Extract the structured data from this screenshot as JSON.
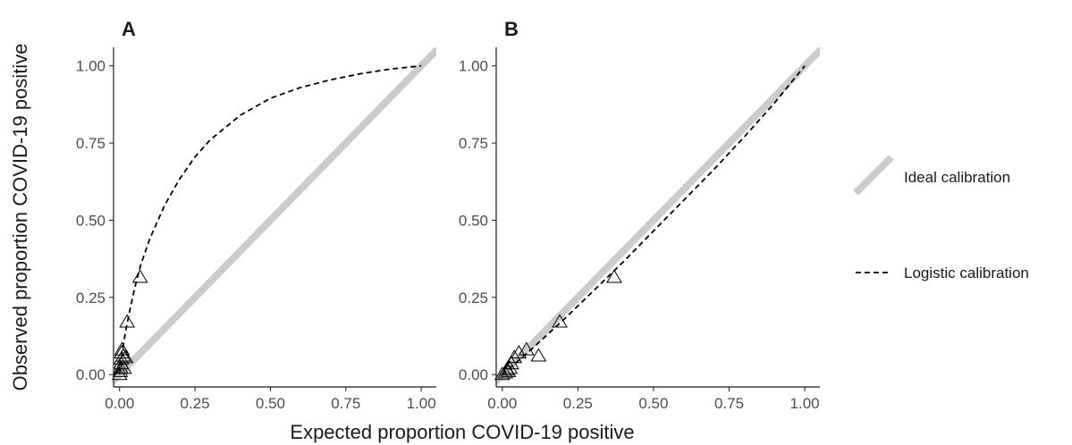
{
  "chart_data": {
    "type": "scatter",
    "xlabel": "Expected proportion COVID-19 positive",
    "ylabel": "Observed proportion COVID-19 positive",
    "xlim": [
      -0.02,
      1.05
    ],
    "ylim": [
      -0.04,
      1.06
    ],
    "x_ticks": [
      "0.00",
      "0.25",
      "0.50",
      "0.75",
      "1.00"
    ],
    "y_ticks": [
      "0.00",
      "0.25",
      "0.50",
      "0.75",
      "1.00"
    ],
    "grid": false,
    "legend": {
      "placement": "right",
      "entries": [
        {
          "label": "Ideal calibration",
          "style": "thick solid line",
          "color": "#cccccc"
        },
        {
          "label": "Logistic calibration",
          "style": "dashed line",
          "color": "#000000"
        }
      ]
    },
    "panels": [
      {
        "tag": "A",
        "points": [
          [
            0.0,
            0.0
          ],
          [
            0.002,
            0.01
          ],
          [
            0.004,
            0.02
          ],
          [
            0.005,
            0.035
          ],
          [
            0.006,
            0.05
          ],
          [
            0.007,
            0.07
          ],
          [
            0.008,
            0.08
          ],
          [
            0.012,
            0.06
          ],
          [
            0.015,
            0.02
          ],
          [
            0.02,
            0.055
          ],
          [
            0.025,
            0.17
          ],
          [
            0.068,
            0.315
          ]
        ],
        "logistic_calibration": [
          [
            0.0,
            0.0
          ],
          [
            0.005,
            0.04
          ],
          [
            0.01,
            0.08
          ],
          [
            0.02,
            0.14
          ],
          [
            0.03,
            0.19
          ],
          [
            0.05,
            0.28
          ],
          [
            0.07,
            0.355
          ],
          [
            0.1,
            0.44
          ],
          [
            0.15,
            0.55
          ],
          [
            0.2,
            0.635
          ],
          [
            0.25,
            0.705
          ],
          [
            0.3,
            0.76
          ],
          [
            0.4,
            0.84
          ],
          [
            0.5,
            0.895
          ],
          [
            0.6,
            0.93
          ],
          [
            0.7,
            0.955
          ],
          [
            0.8,
            0.975
          ],
          [
            0.9,
            0.99
          ],
          [
            1.0,
            1.0
          ]
        ]
      },
      {
        "tag": "B",
        "points": [
          [
            0.0,
            0.0
          ],
          [
            0.01,
            0.005
          ],
          [
            0.015,
            0.015
          ],
          [
            0.02,
            0.01
          ],
          [
            0.025,
            0.02
          ],
          [
            0.03,
            0.035
          ],
          [
            0.04,
            0.055
          ],
          [
            0.055,
            0.07
          ],
          [
            0.08,
            0.08
          ],
          [
            0.12,
            0.06
          ],
          [
            0.19,
            0.17
          ],
          [
            0.37,
            0.315
          ]
        ],
        "logistic_calibration": [
          [
            0.0,
            0.0
          ],
          [
            0.1,
            0.085
          ],
          [
            0.2,
            0.175
          ],
          [
            0.3,
            0.27
          ],
          [
            0.4,
            0.365
          ],
          [
            0.5,
            0.465
          ],
          [
            0.6,
            0.565
          ],
          [
            0.7,
            0.665
          ],
          [
            0.8,
            0.77
          ],
          [
            0.9,
            0.88
          ],
          [
            1.0,
            1.0
          ]
        ]
      }
    ]
  },
  "colors": {
    "ideal_line": "#cccccc",
    "logistic_line": "#000000",
    "axis": "#1a1a1a",
    "tick_label": "#4d4d4d"
  }
}
